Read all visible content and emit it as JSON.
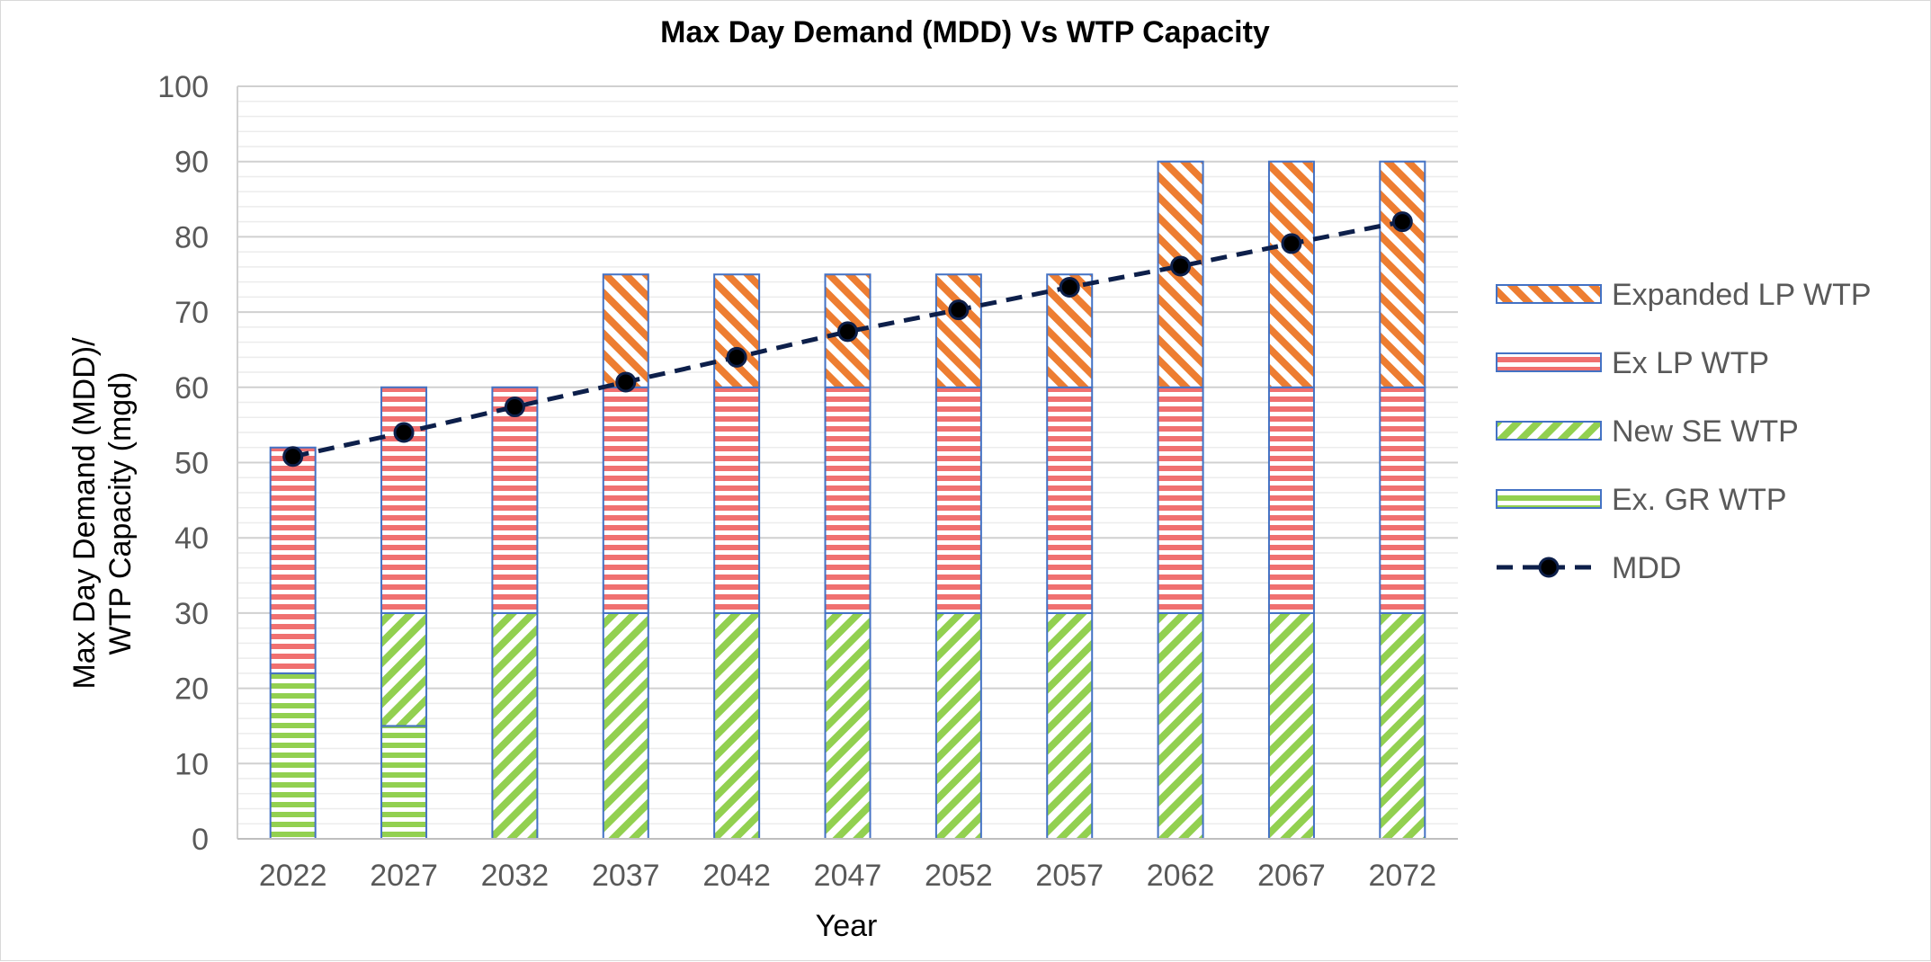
{
  "chart_data": {
    "type": "bar",
    "stacked": true,
    "title": "Max Day Demand (MDD) Vs WTP Capacity",
    "xlabel": "Year",
    "ylabel_lines": [
      "Max Day Demand (MDD)/",
      "WTP Capacity (mgd)"
    ],
    "ylim": [
      0,
      100
    ],
    "yticks": [
      "0",
      "10",
      "20",
      "30",
      "40",
      "50",
      "60",
      "70",
      "80",
      "90",
      "100"
    ],
    "grid": "horizontal major and minor",
    "legend_position": "right",
    "categories": [
      "2022",
      "2027",
      "2032",
      "2037",
      "2042",
      "2047",
      "2052",
      "2057",
      "2062",
      "2067",
      "2072"
    ],
    "series": [
      {
        "name": "Ex. GR WTP",
        "kind": "bar",
        "color": "#92D050",
        "pattern": "horizontal-stripes",
        "values": [
          22,
          15,
          0,
          0,
          0,
          0,
          0,
          0,
          0,
          0,
          0
        ]
      },
      {
        "name": "New SE WTP",
        "kind": "bar",
        "color": "#92D050",
        "pattern": "diagonal-stripes",
        "values": [
          0,
          15,
          30,
          30,
          30,
          30,
          30,
          30,
          30,
          30,
          30
        ]
      },
      {
        "name": "Ex LP WTP",
        "kind": "bar",
        "color": "#F07070",
        "pattern": "horizontal-stripes",
        "values": [
          30,
          30,
          30,
          30,
          30,
          30,
          30,
          30,
          30,
          30,
          30
        ]
      },
      {
        "name": "Expanded LP WTP",
        "kind": "bar",
        "color": "#ED7D31",
        "pattern": "diagonal-stripes",
        "values": [
          0,
          0,
          0,
          15,
          15,
          15,
          15,
          15,
          30,
          30,
          30
        ]
      },
      {
        "name": "MDD",
        "kind": "line",
        "color": "#0D1F4A",
        "style": "dashed with markers",
        "values": [
          50.8,
          54,
          57.4,
          60.7,
          64,
          67.4,
          70.3,
          73.3,
          76.1,
          79.1,
          82
        ]
      }
    ],
    "legend_order": [
      "Expanded LP WTP",
      "Ex LP WTP",
      "New SE WTP",
      "Ex. GR WTP",
      "MDD"
    ],
    "bar_outline_color": "#4472C4"
  }
}
